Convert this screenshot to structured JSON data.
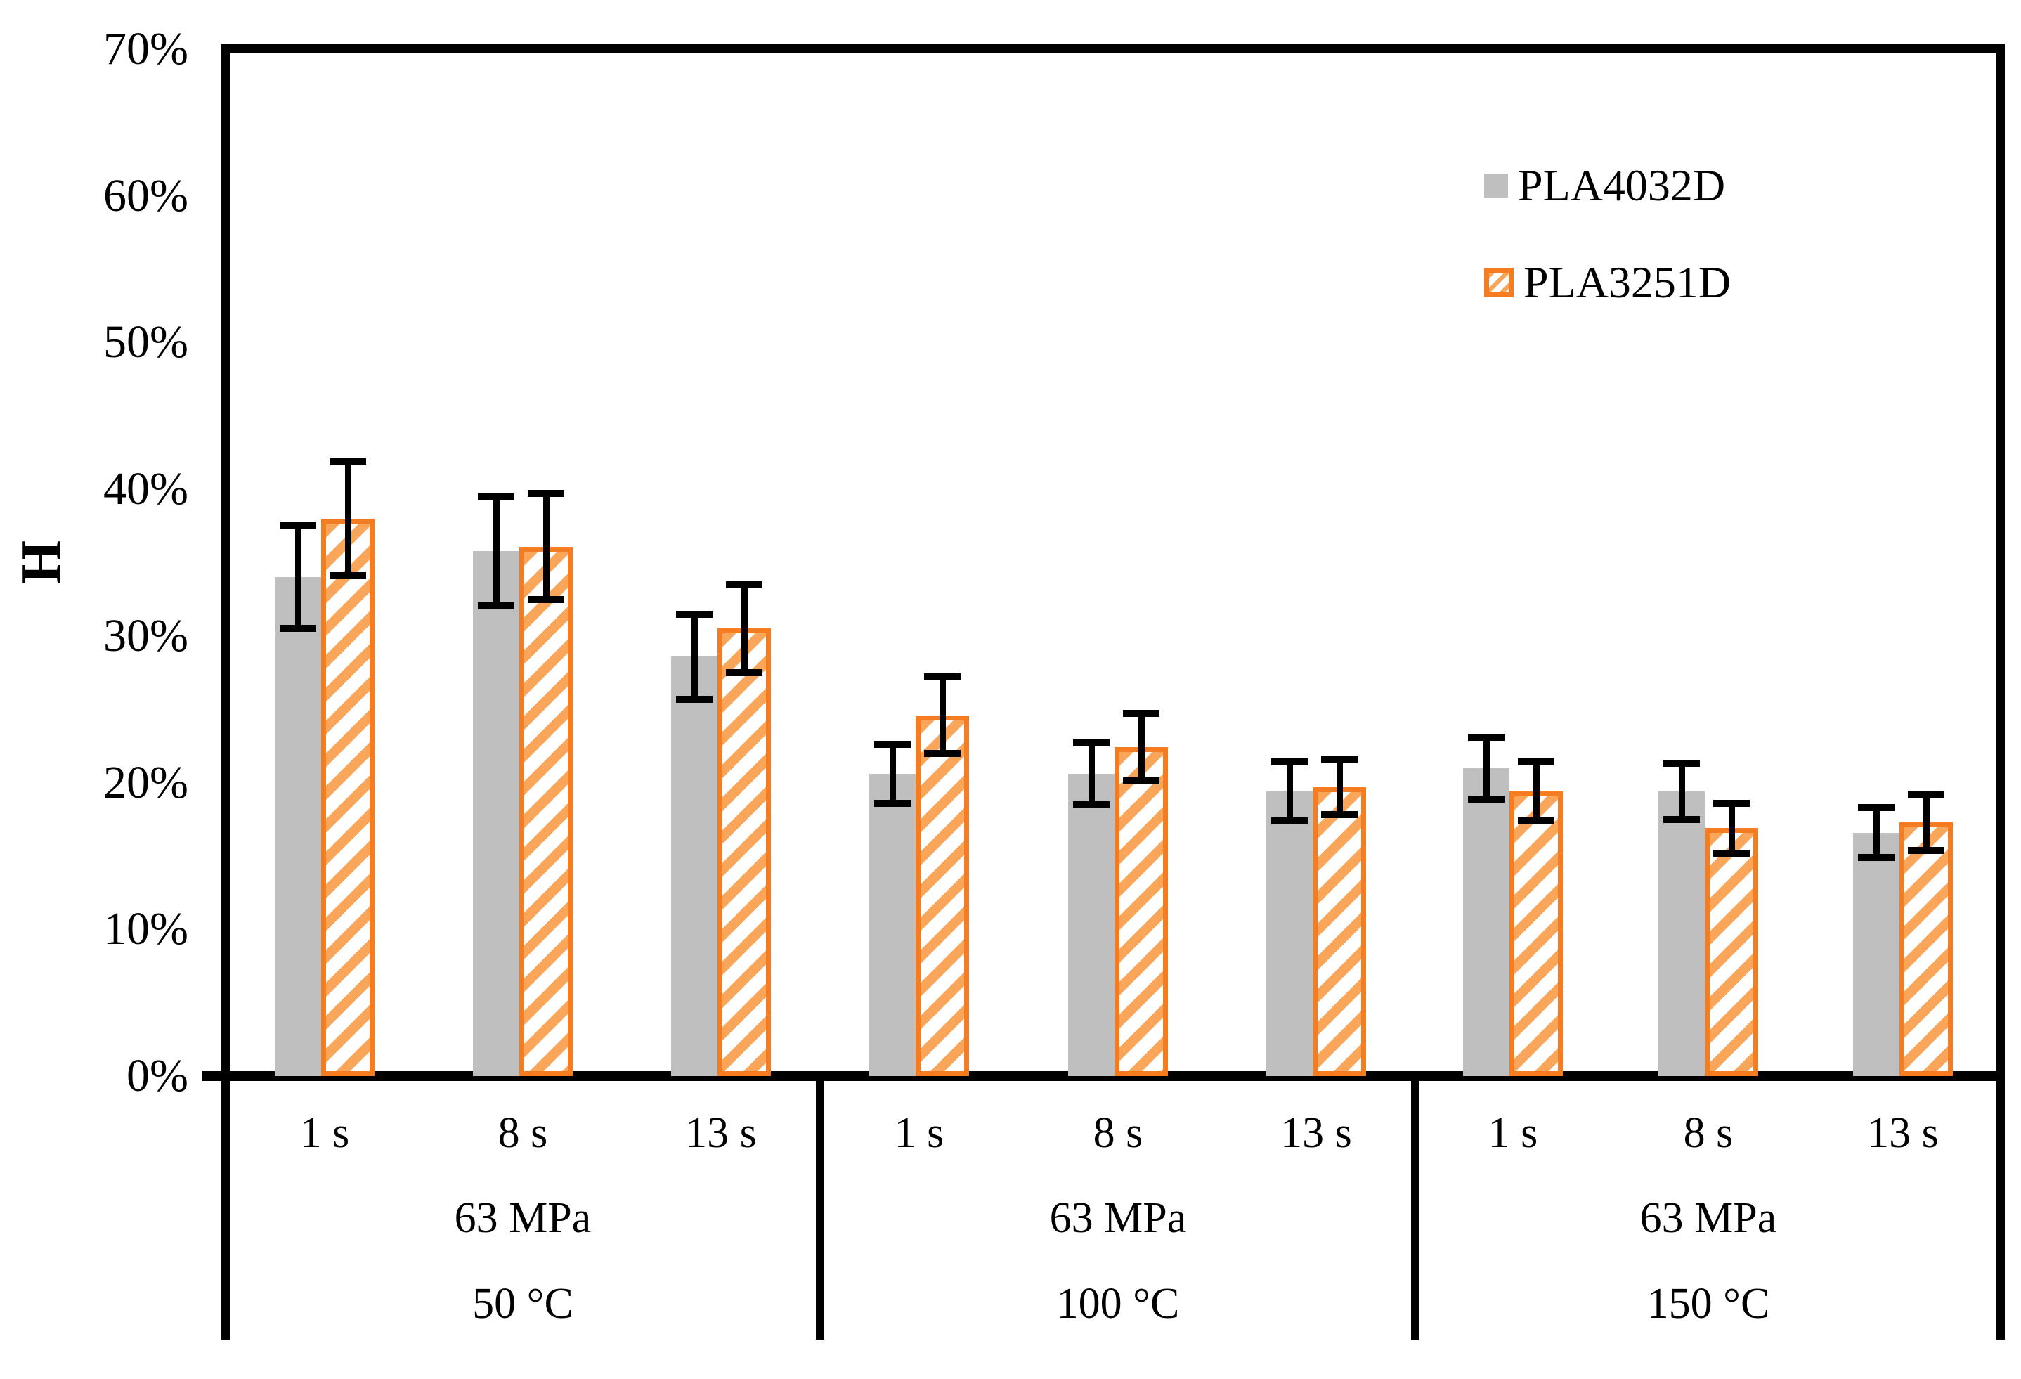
{
  "figure": {
    "background": "#FFFFFF"
  },
  "chart_data": {
    "type": "bar",
    "title": "",
    "ylabel": "H",
    "grid": false,
    "legend_position": "upper-right",
    "error_bar_color": "#000000",
    "y_axis": {
      "min": 0,
      "max": 70,
      "tick_step": 10,
      "tick_labels": [
        "0%",
        "10%",
        "20%",
        "30%",
        "40%",
        "50%",
        "60%",
        "70%"
      ]
    },
    "x_axis": {
      "time_labels": [
        "1 s",
        "8 s",
        "13 s"
      ],
      "groups": [
        {
          "pressure": "63 MPa",
          "temperature": "50 °C"
        },
        {
          "pressure": "63 MPa",
          "temperature": "100 °C"
        },
        {
          "pressure": "63 MPa",
          "temperature": "150 °C"
        }
      ]
    },
    "series": [
      {
        "name": "PLA4032D",
        "style": "solid",
        "color": "#BFBFBF",
        "values_pct": [
          [
            34.0,
            35.8,
            28.6
          ],
          [
            20.6,
            20.6,
            19.4
          ],
          [
            21.0,
            19.4,
            16.6
          ]
        ],
        "errors_pct": [
          [
            3.5,
            3.7,
            2.9
          ],
          [
            2.0,
            2.1,
            2.0
          ],
          [
            2.1,
            1.9,
            1.7
          ]
        ]
      },
      {
        "name": "PLA3251D",
        "style": "hatched",
        "color": "#F57C20",
        "hatch_color": "#FAA65A",
        "values_pct": [
          [
            38.0,
            36.1,
            30.5
          ],
          [
            24.6,
            22.4,
            19.7
          ],
          [
            19.4,
            16.9,
            17.3
          ]
        ],
        "errors_pct": [
          [
            3.9,
            3.6,
            3.0
          ],
          [
            2.6,
            2.3,
            1.9
          ],
          [
            2.0,
            1.7,
            1.9
          ]
        ]
      }
    ]
  }
}
